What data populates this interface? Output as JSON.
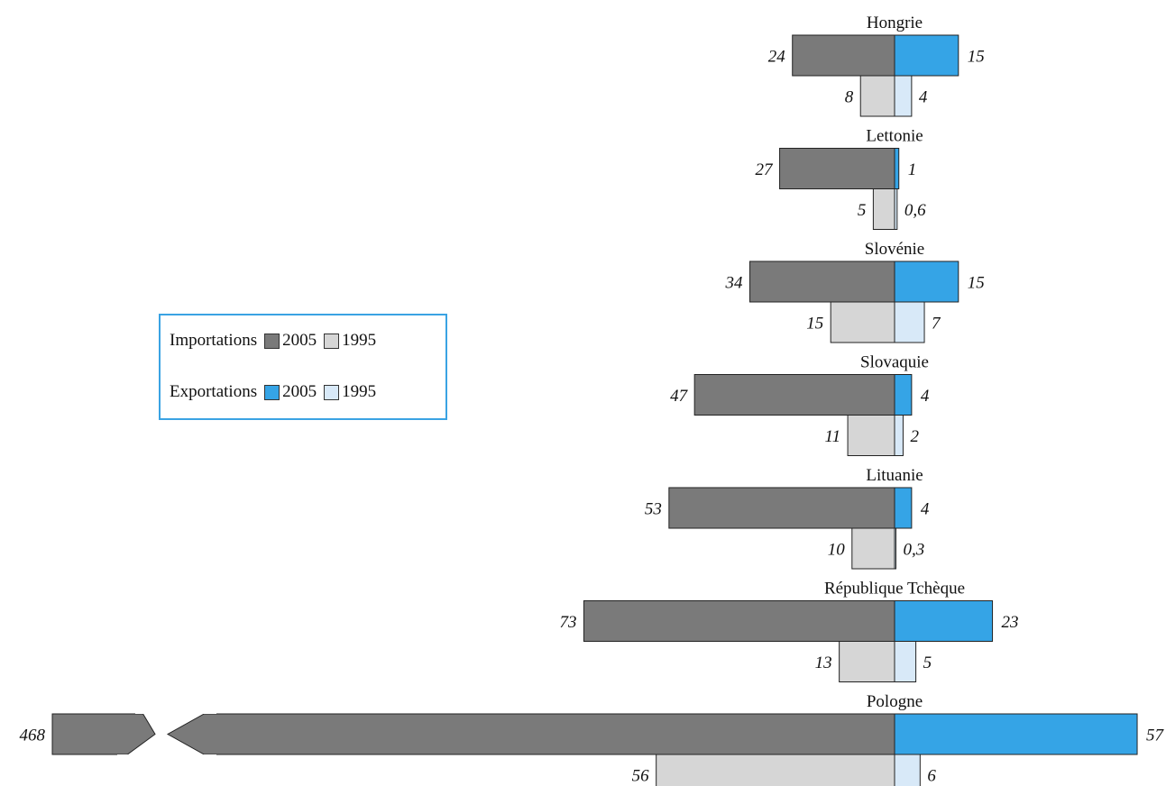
{
  "chart_data": {
    "type": "bar",
    "orientation": "horizontal-diverging",
    "categories": [
      "Hongrie",
      "Lettonie",
      "Slovénie",
      "Slovaquie",
      "Lituanie",
      "République Tchèque",
      "Pologne"
    ],
    "series": [
      {
        "name": "Importations 2005",
        "side": "left",
        "year": "2005",
        "values": [
          24,
          27,
          34,
          47,
          53,
          73,
          468
        ],
        "labels": [
          "24",
          "27",
          "34",
          "47",
          "53",
          "73",
          "468"
        ]
      },
      {
        "name": "Importations 1995",
        "side": "left",
        "year": "1995",
        "values": [
          8,
          5,
          15,
          11,
          10,
          13,
          56
        ],
        "labels": [
          "8",
          "5",
          "15",
          "11",
          "10",
          "13",
          "56"
        ]
      },
      {
        "name": "Exportations 2005",
        "side": "right",
        "year": "2005",
        "values": [
          15,
          1,
          15,
          4,
          4,
          23,
          57
        ],
        "labels": [
          "15",
          "1",
          "15",
          "4",
          "4",
          "23",
          "57"
        ]
      },
      {
        "name": "Exportations 1995",
        "side": "right",
        "year": "1995",
        "values": [
          4,
          0.6,
          7,
          2,
          0.3,
          5,
          6
        ],
        "labels": [
          "4",
          "0,6",
          "7",
          "2",
          "0,3",
          "5",
          "6"
        ]
      }
    ],
    "axis_break": {
      "category": "Pologne",
      "series": "Importations 2005"
    },
    "grid": false,
    "legend": {
      "placement": "left",
      "rows": [
        {
          "label": "Importations",
          "items": [
            "2005",
            "1995"
          ]
        },
        {
          "label": "Exportations",
          "items": [
            "2005",
            "1995"
          ]
        }
      ]
    }
  },
  "colors": {
    "imports_2005": "#7a7a7a",
    "imports_1995": "#d6d6d6",
    "exports_2005": "#35a4e6",
    "exports_1995": "#d8e9f8",
    "legend_border": "#3aa3e3"
  }
}
